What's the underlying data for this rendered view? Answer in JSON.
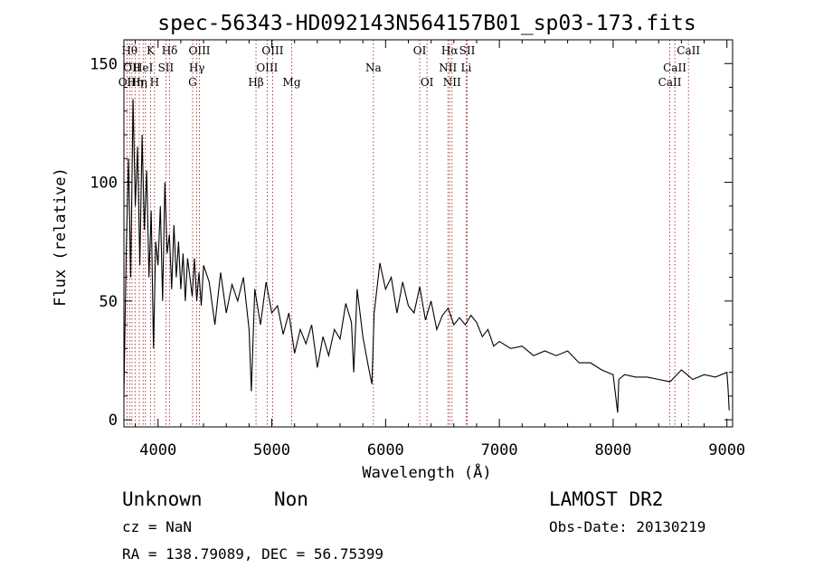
{
  "chart_data": {
    "type": "line",
    "title": "spec-56343-HD092143N564157B01_sp03-173.fits",
    "xlabel": "Wavelength (Å)",
    "ylabel": "Flux (relative)",
    "xlim": [
      3700,
      9050
    ],
    "ylim": [
      -3,
      160
    ],
    "xticks": [
      4000,
      5000,
      6000,
      7000,
      8000,
      9000
    ],
    "yticks": [
      0,
      50,
      100,
      150
    ],
    "grid": false,
    "series": [
      {
        "x": [
          3700,
          3720,
          3740,
          3760,
          3780,
          3800,
          3820,
          3840,
          3860,
          3880,
          3900,
          3920,
          3940,
          3960,
          3980,
          4000,
          4020,
          4040,
          4060,
          4080,
          4100,
          4120,
          4140,
          4160,
          4180,
          4200,
          4220,
          4240,
          4260,
          4280,
          4300,
          4320,
          4340,
          4360,
          4380,
          4400,
          4450,
          4500,
          4550,
          4600,
          4650,
          4700,
          4750,
          4800,
          4820,
          4850,
          4900,
          4950,
          5000,
          5050,
          5100,
          5150,
          5200,
          5250,
          5300,
          5350,
          5400,
          5450,
          5500,
          5550,
          5600,
          5650,
          5700,
          5720,
          5750,
          5800,
          5850,
          5880,
          5900,
          5950,
          6000,
          6050,
          6100,
          6150,
          6200,
          6250,
          6300,
          6350,
          6400,
          6450,
          6500,
          6550,
          6600,
          6650,
          6700,
          6750,
          6800,
          6850,
          6900,
          6950,
          7000,
          7100,
          7200,
          7300,
          7400,
          7500,
          7600,
          7700,
          7800,
          7900,
          8000,
          8040,
          8050,
          8100,
          8200,
          8300,
          8400,
          8500,
          8600,
          8700,
          8800,
          8900,
          9000,
          9010,
          9020
        ],
        "y": [
          10,
          70,
          110,
          60,
          135,
          90,
          115,
          65,
          120,
          80,
          105,
          60,
          88,
          30,
          75,
          65,
          90,
          50,
          100,
          70,
          78,
          55,
          82,
          60,
          75,
          55,
          70,
          50,
          68,
          60,
          52,
          68,
          50,
          62,
          48,
          65,
          58,
          40,
          62,
          45,
          57,
          50,
          60,
          38,
          12,
          55,
          40,
          58,
          45,
          48,
          36,
          45,
          28,
          38,
          32,
          40,
          22,
          35,
          27,
          38,
          34,
          49,
          41,
          20,
          55,
          35,
          22,
          15,
          45,
          66,
          55,
          60,
          45,
          58,
          48,
          45,
          56,
          42,
          50,
          38,
          44,
          47,
          40,
          43,
          40,
          44,
          41,
          35,
          38,
          31,
          33,
          30,
          31,
          27,
          29,
          27,
          29,
          24,
          24,
          21,
          19,
          3,
          17,
          19,
          18,
          18,
          17,
          16,
          21,
          17,
          19,
          18,
          20,
          13,
          4
        ]
      }
    ],
    "lines": [
      {
        "wl": 3727,
        "label": "OII",
        "tier": 2
      },
      {
        "wl": 3750,
        "label": "Hθ",
        "tier": 0
      },
      {
        "wl": 3771,
        "label": "OII",
        "tier": 1
      },
      {
        "wl": 3798,
        "label": "Hη",
        "tier": 2
      },
      {
        "wl": 3835,
        "label": "Hη",
        "tier": 2
      },
      {
        "wl": 3869,
        "label": "HeI",
        "tier": 1
      },
      {
        "wl": 3889,
        "label": "",
        "tier": -1
      },
      {
        "wl": 3934,
        "label": "K",
        "tier": 0
      },
      {
        "wl": 3969,
        "label": "H",
        "tier": 2
      },
      {
        "wl": 4069,
        "label": "SII",
        "tier": 1
      },
      {
        "wl": 4102,
        "label": "Hδ",
        "tier": 0
      },
      {
        "wl": 4304,
        "label": "G",
        "tier": 2
      },
      {
        "wl": 4341,
        "label": "Hγ",
        "tier": 1
      },
      {
        "wl": 4364,
        "label": "OIII",
        "tier": 0
      },
      {
        "wl": 4861,
        "label": "Hβ",
        "tier": 2
      },
      {
        "wl": 4959,
        "label": "OIII",
        "tier": 1
      },
      {
        "wl": 5007,
        "label": "OIII",
        "tier": 0
      },
      {
        "wl": 5175,
        "label": "Mg",
        "tier": 2
      },
      {
        "wl": 5893,
        "label": "Na",
        "tier": 1
      },
      {
        "wl": 6300,
        "label": "OI",
        "tier": 0
      },
      {
        "wl": 6364,
        "label": "OI",
        "tier": 2
      },
      {
        "wl": 6548,
        "label": "NII",
        "tier": 1
      },
      {
        "wl": 6563,
        "label": "Hα",
        "tier": 0
      },
      {
        "wl": 6584,
        "label": "NII",
        "tier": 2
      },
      {
        "wl": 6708,
        "label": "Li",
        "tier": 1
      },
      {
        "wl": 6717,
        "label": "SII",
        "tier": 0
      },
      {
        "wl": 8498,
        "label": "CaII",
        "tier": 2
      },
      {
        "wl": 8542,
        "label": "CaII",
        "tier": 1
      },
      {
        "wl": 8662,
        "label": "CaII",
        "tier": 0
      }
    ]
  },
  "footer": {
    "object_class": "Unknown",
    "subclass": "Non",
    "survey": "LAMOST DR2",
    "cz": "cz = NaN",
    "obs_date": "Obs-Date: 20130219",
    "coords": "RA = 138.79089, DEC =  56.75399"
  }
}
